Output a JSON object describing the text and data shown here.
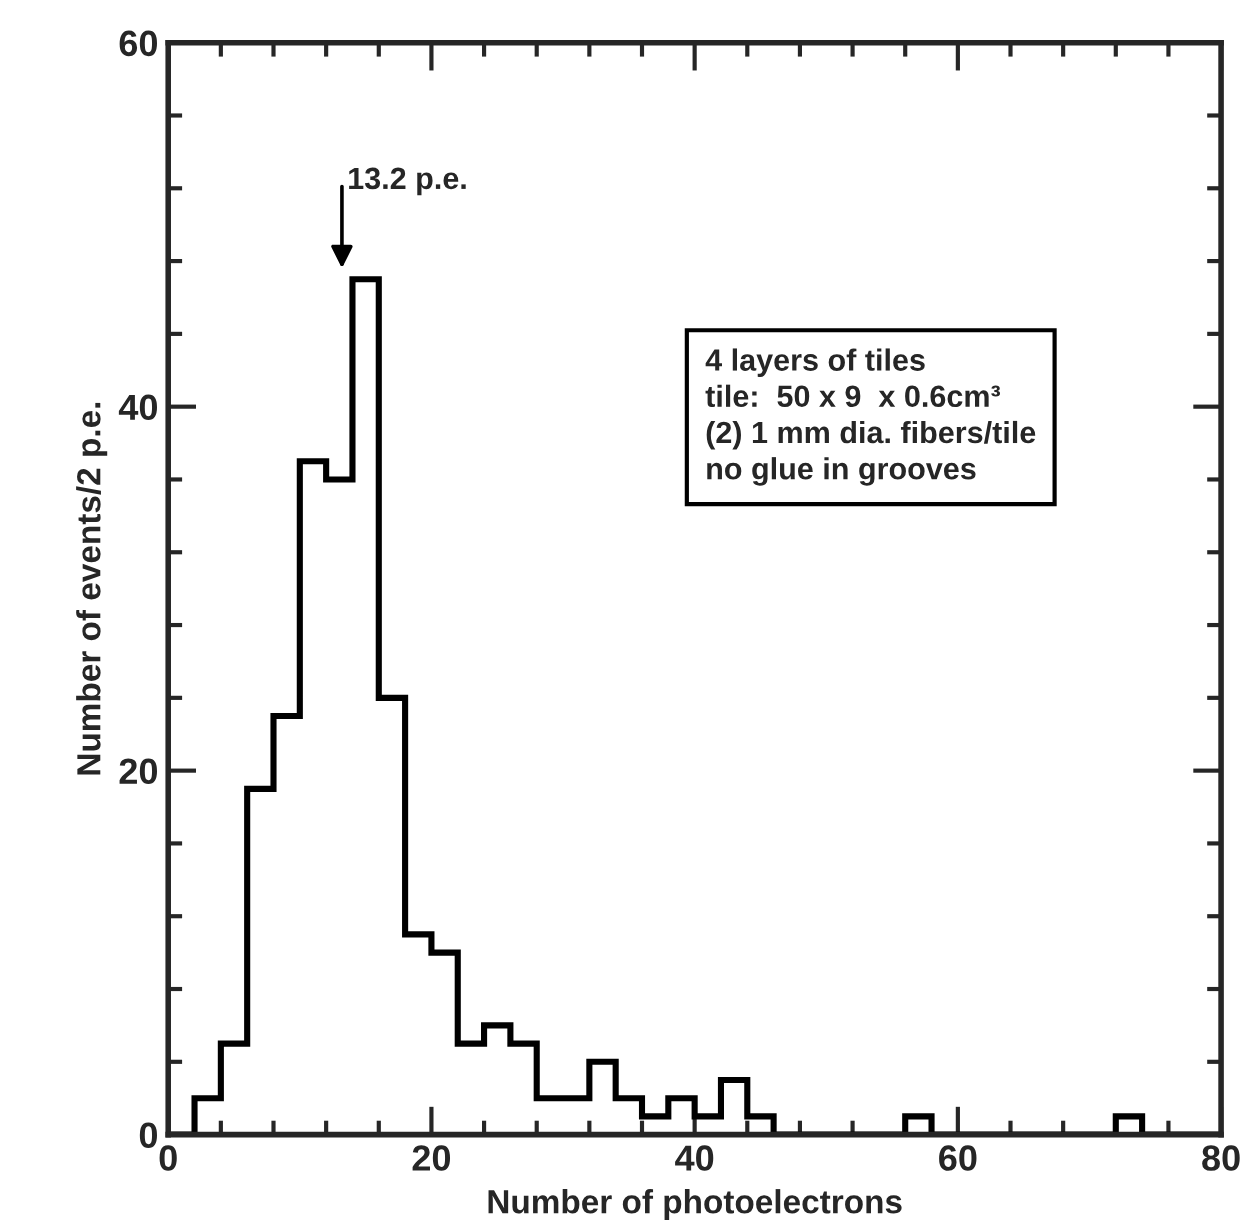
{
  "chart_data": {
    "type": "histogram",
    "xlabel": "Number of photoelectrons",
    "ylabel": "Number of events/2 p.e.",
    "bins": [
      0,
      2,
      4,
      6,
      8,
      10,
      12,
      14,
      16,
      18,
      20,
      22,
      24,
      26,
      28,
      30,
      32,
      34,
      36,
      38,
      40,
      42,
      44,
      46,
      48,
      50,
      52,
      54,
      56,
      58,
      60,
      62,
      64,
      66,
      68,
      70,
      72,
      74,
      76,
      78,
      80
    ],
    "values": [
      0,
      2,
      5,
      19,
      23,
      37,
      36,
      47,
      24,
      11,
      10,
      5,
      6,
      5,
      2,
      2,
      4,
      2,
      1,
      2,
      1,
      3,
      1,
      0,
      0,
      0,
      0,
      0,
      1,
      0,
      0,
      0,
      0,
      0,
      0,
      0,
      1,
      0,
      0,
      0
    ],
    "color": "#000000",
    "xlim": [
      0,
      80
    ],
    "ylim": [
      0,
      60
    ],
    "xticks": [
      0,
      20,
      40,
      60,
      80
    ],
    "yticks": [
      0,
      20,
      40,
      60
    ],
    "grid": false,
    "annotations": [
      {
        "text": "13.2 p.e.",
        "x": 13.2,
        "y": 47
      },
      "4 layers of tiles\ntile:  50 x 9  x 0.6cm³\n(2) 1 mm dia. fibers/tile\nno glue in grooves"
    ]
  }
}
